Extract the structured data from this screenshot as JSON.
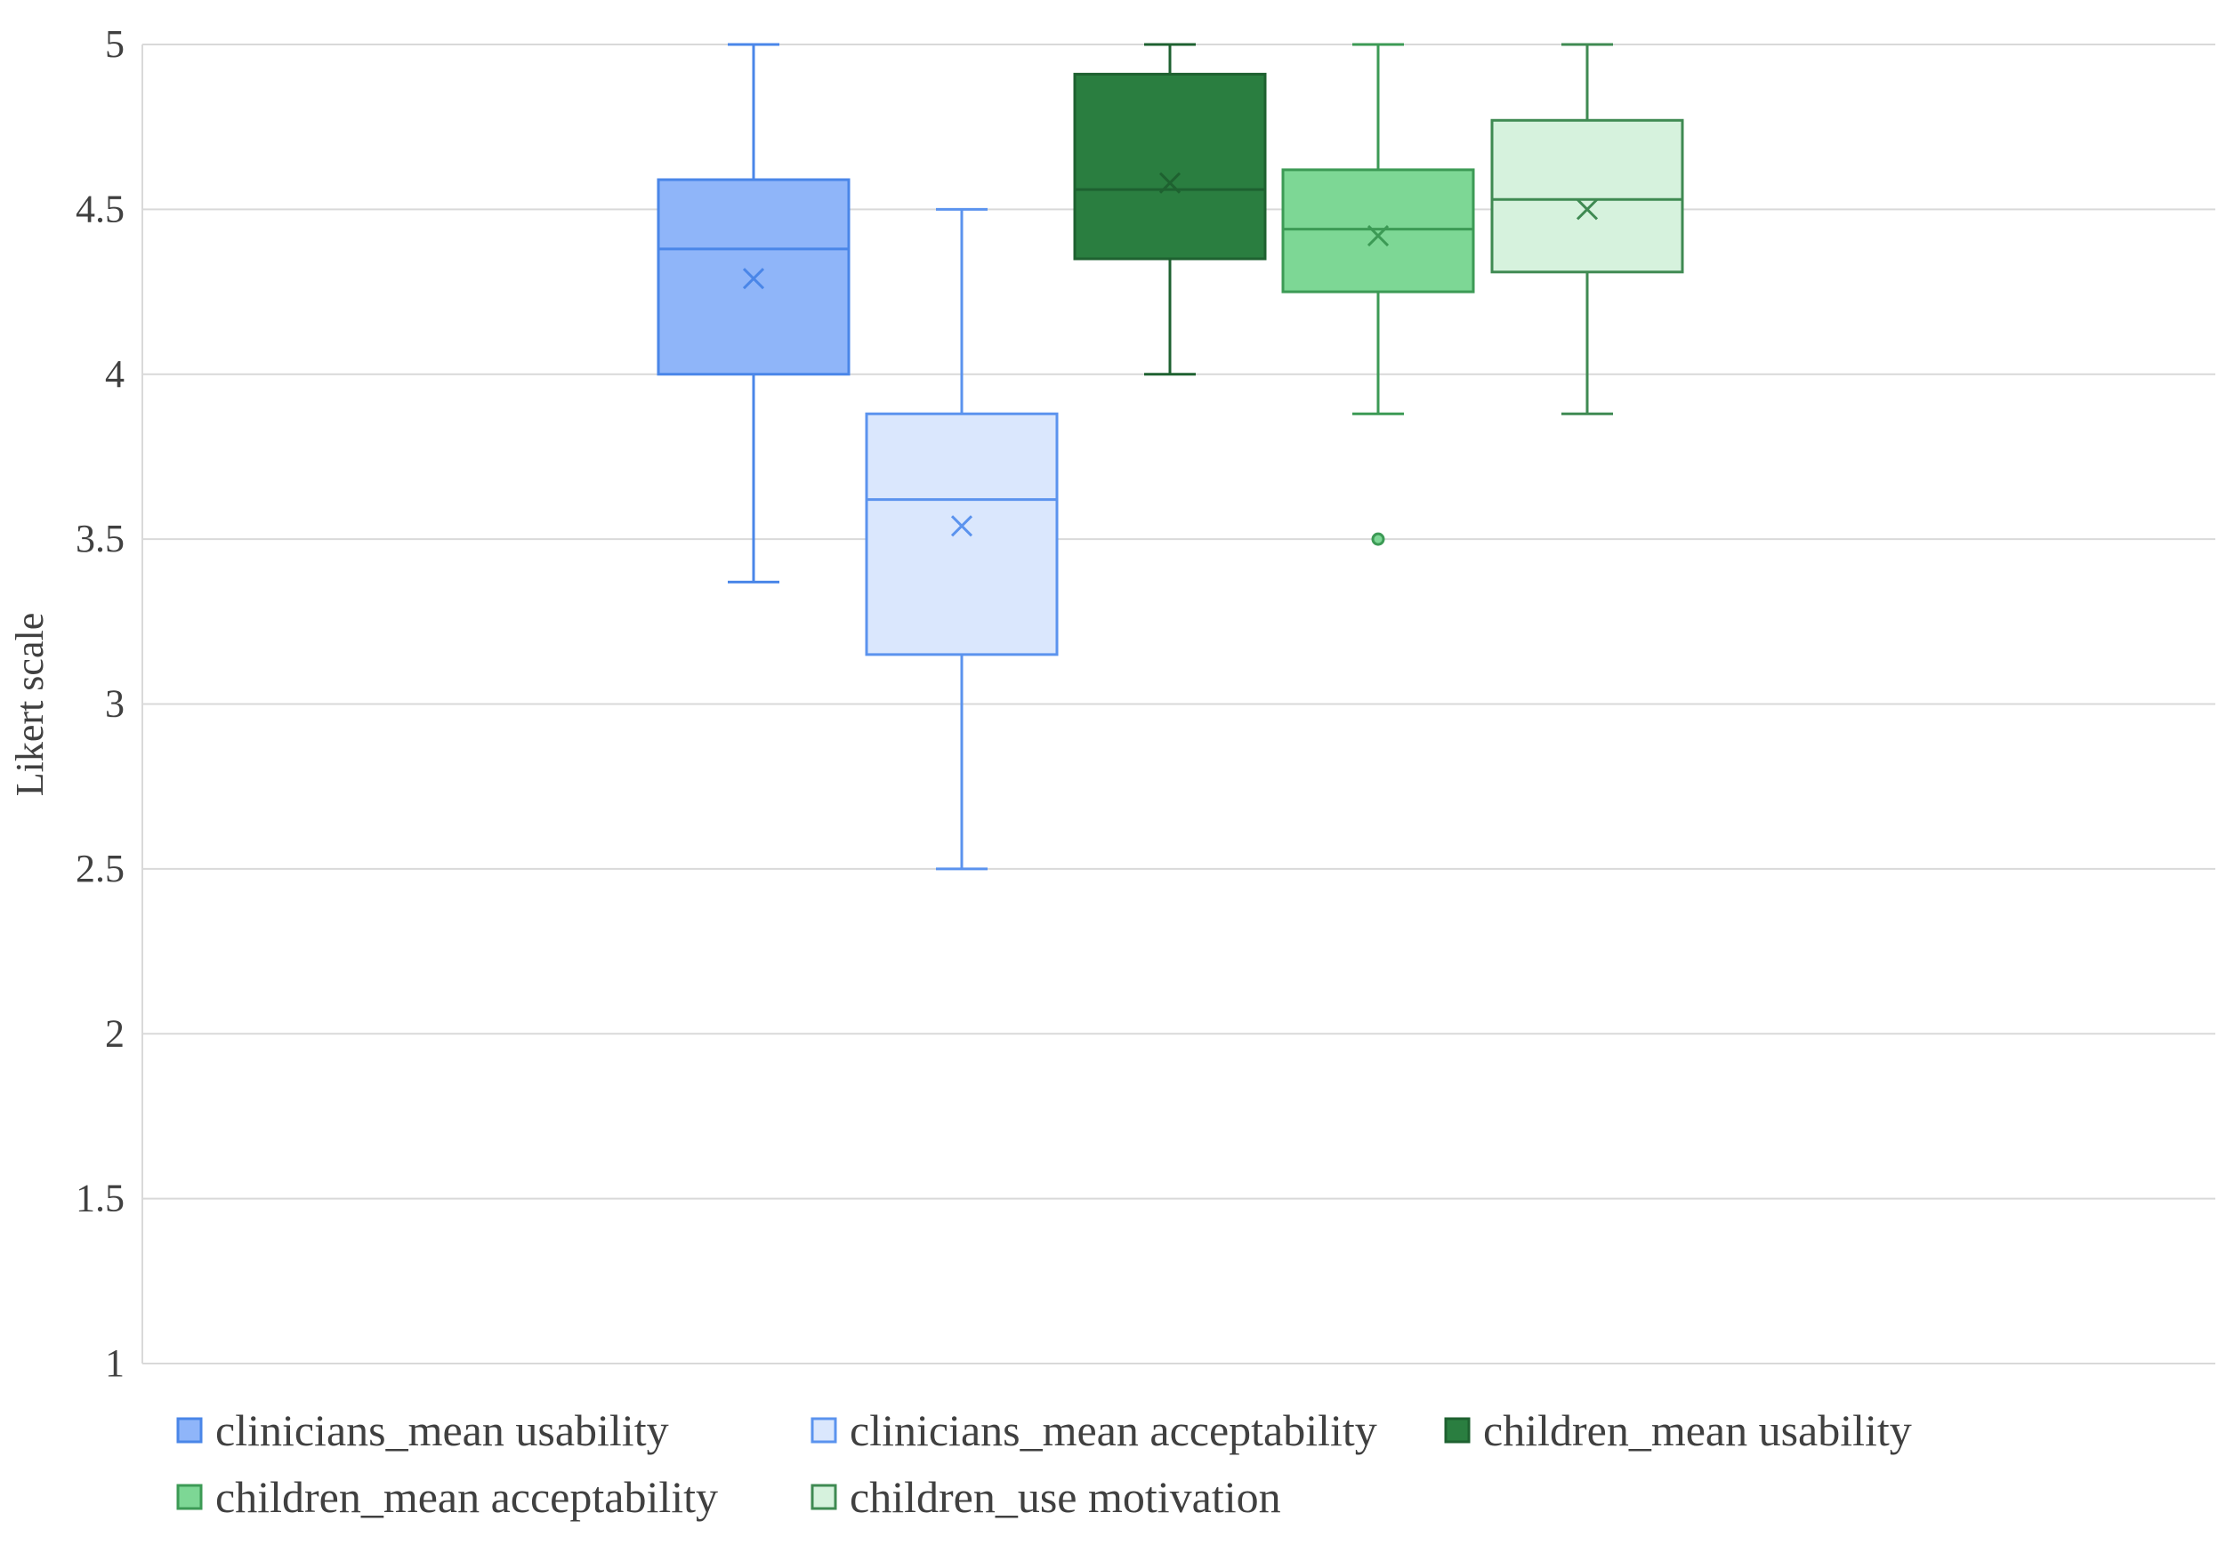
{
  "chart_data": {
    "type": "boxplot",
    "title": "",
    "xlabel": "",
    "ylabel": "Likert scale",
    "ylim": [
      1,
      5
    ],
    "yticks": [
      1,
      1.5,
      2,
      2.5,
      3,
      3.5,
      4,
      4.5,
      5
    ],
    "grid": true,
    "legend_position": "bottom",
    "series": [
      {
        "name": "clinicians_mean usability",
        "min": 3.37,
        "q1": 4.0,
        "median": 4.38,
        "q3": 4.59,
        "max": 5.0,
        "mean": 4.29,
        "outliers": [],
        "fill": "#8fb5f9",
        "stroke": "#4a86e8"
      },
      {
        "name": "clinicians_mean acceptability",
        "min": 2.5,
        "q1": 3.15,
        "median": 3.62,
        "q3": 3.88,
        "max": 4.5,
        "mean": 3.54,
        "outliers": [],
        "fill": "#dae7fd",
        "stroke": "#5b93ee"
      },
      {
        "name": "children_mean usability",
        "min": 4.0,
        "q1": 4.35,
        "median": 4.56,
        "q3": 4.91,
        "max": 5.0,
        "mean": 4.58,
        "outliers": [],
        "fill": "#2a7e40",
        "stroke": "#1e6130"
      },
      {
        "name": "children_mean acceptability",
        "min": 3.88,
        "q1": 4.25,
        "median": 4.44,
        "q3": 4.62,
        "max": 5.0,
        "mean": 4.42,
        "outliers": [
          3.5
        ],
        "fill": "#7dd795",
        "stroke": "#3c9a55"
      },
      {
        "name": "children_use motivation",
        "min": 3.88,
        "q1": 4.31,
        "median": 4.53,
        "q3": 4.77,
        "max": 5.0,
        "mean": 4.5,
        "outliers": [],
        "fill": "#d6f2dd",
        "stroke": "#3f8a52"
      }
    ]
  }
}
